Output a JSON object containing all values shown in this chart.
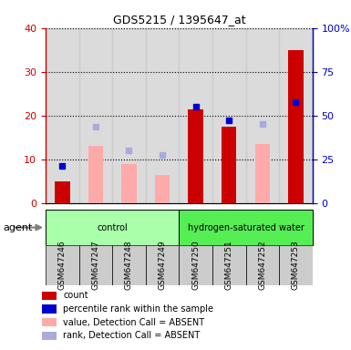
{
  "title": "GDS5215 / 1395647_at",
  "categories": [
    "GSM647246",
    "GSM647247",
    "GSM647248",
    "GSM647249",
    "GSM647250",
    "GSM647251",
    "GSM647252",
    "GSM647253"
  ],
  "groups": [
    {
      "label": "control",
      "indices": [
        0,
        1,
        2,
        3
      ],
      "color": "#aaffaa"
    },
    {
      "label": "hydrogen-saturated water",
      "indices": [
        4,
        5,
        6,
        7
      ],
      "color": "#55ee55"
    }
  ],
  "count_bars": [
    5,
    null,
    null,
    null,
    21.5,
    17.5,
    null,
    35
  ],
  "count_color": "#cc0000",
  "absent_value_bars": [
    null,
    13,
    9,
    6.5,
    null,
    null,
    13.5,
    null
  ],
  "absent_value_color": "#ffaaaa",
  "percentile_rank_dots": [
    8.5,
    null,
    null,
    null,
    22,
    19,
    null,
    23
  ],
  "percentile_rank_color": "#0000cc",
  "absent_rank_dots": [
    null,
    17.5,
    12,
    11,
    null,
    null,
    18,
    null
  ],
  "absent_rank_color": "#aaaadd",
  "ylim_left": [
    0,
    40
  ],
  "ylim_right": [
    0,
    100
  ],
  "yticks_left": [
    0,
    10,
    20,
    30,
    40
  ],
  "ytick_labels_right": [
    "0",
    "25",
    "50",
    "75",
    "100%"
  ],
  "left_axis_color": "#cc0000",
  "right_axis_color": "#0000cc",
  "agent_label": "agent",
  "bar_width": 0.45,
  "legend_items": [
    {
      "label": "count",
      "color": "#cc0000"
    },
    {
      "label": "percentile rank within the sample",
      "color": "#0000cc"
    },
    {
      "label": "value, Detection Call = ABSENT",
      "color": "#ffaaaa"
    },
    {
      "label": "rank, Detection Call = ABSENT",
      "color": "#aaaadd"
    }
  ]
}
